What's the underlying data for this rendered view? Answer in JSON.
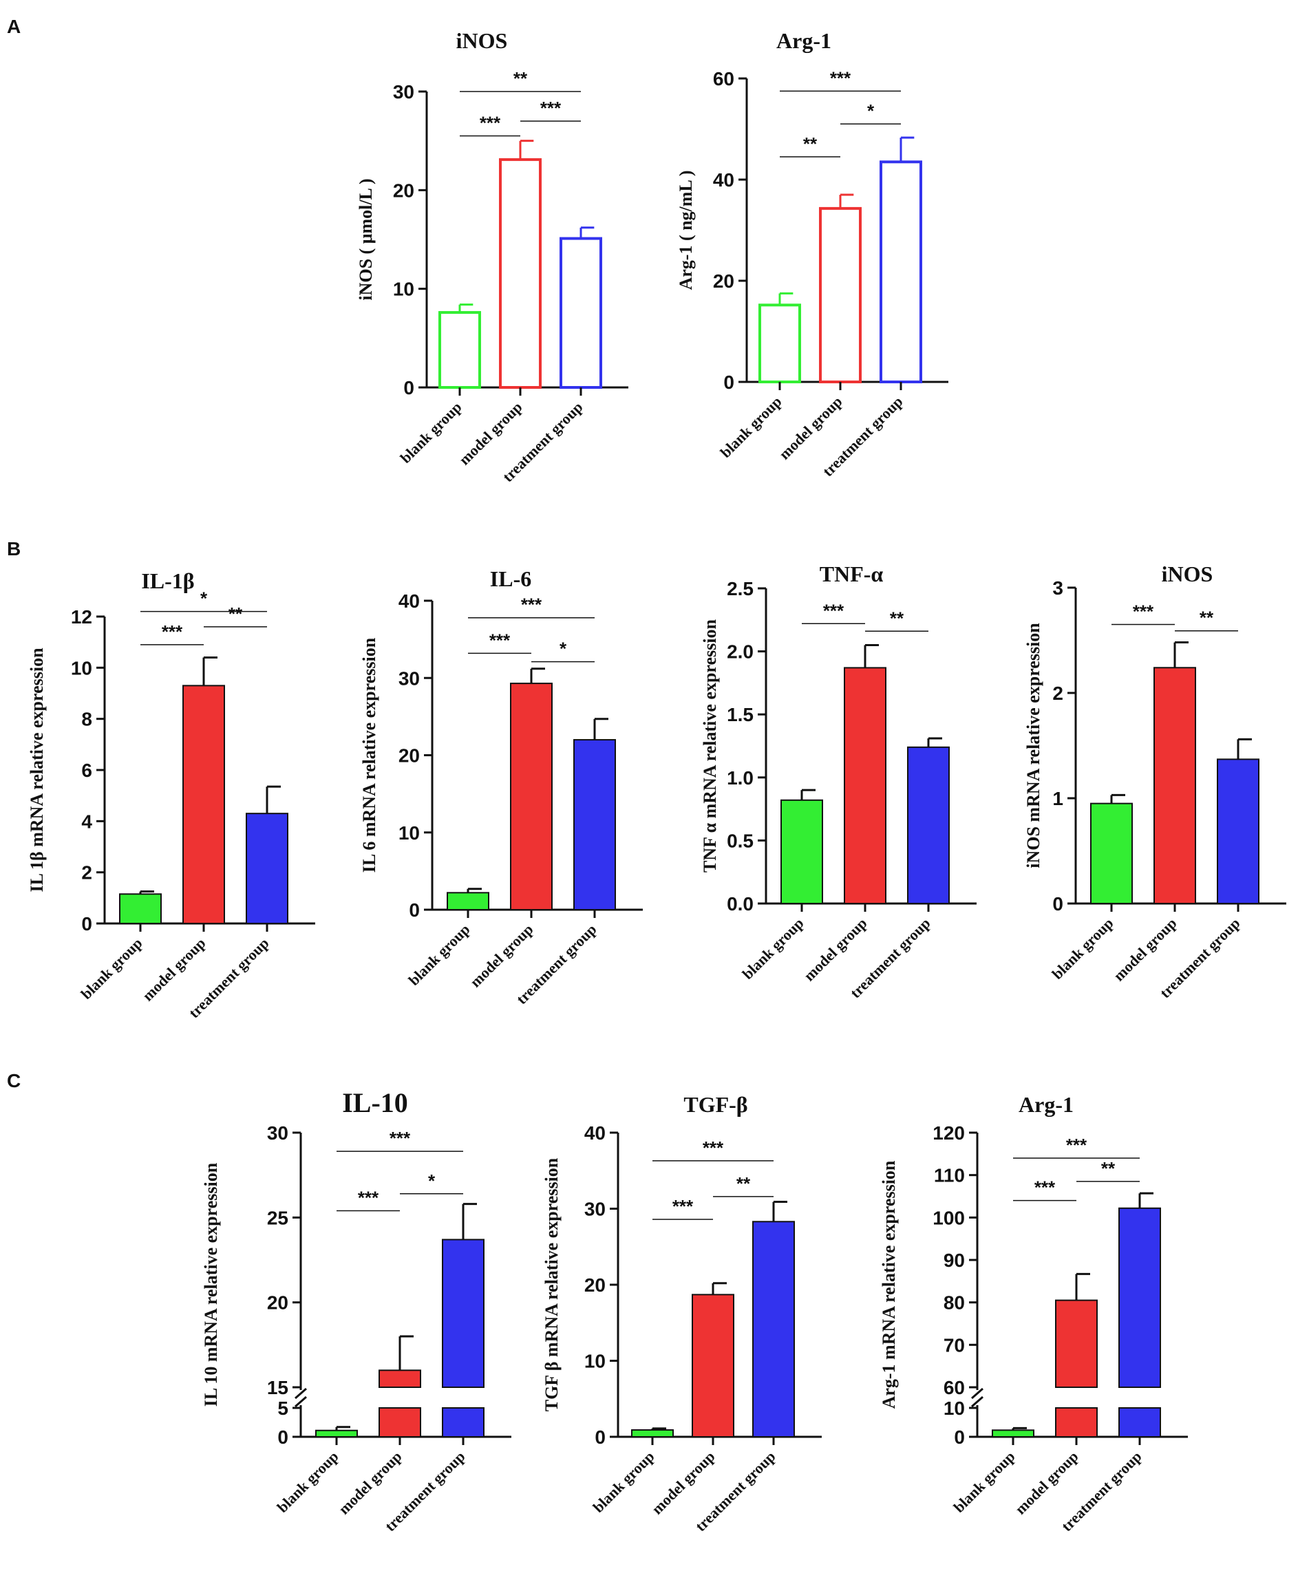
{
  "figure": {
    "panels": [
      {
        "label": "A"
      },
      {
        "label": "B"
      },
      {
        "label": "C"
      }
    ]
  },
  "chart_data": [
    {
      "id": "A1",
      "panel": "A",
      "type": "bar",
      "title": "iNOS",
      "ylabel": "iNOS ( μmol/L )",
      "categories": [
        "blank group",
        "model group",
        "treatment group"
      ],
      "values": [
        7.6,
        23.1,
        15.1
      ],
      "errors": [
        0.8,
        1.9,
        1.1
      ],
      "colors": [
        "#33ee33",
        "#ee3333",
        "#3333ee"
      ],
      "filled": false,
      "ylim": [
        0,
        30
      ],
      "yticks": [
        0,
        10,
        20,
        30
      ],
      "tick_labels": [
        "0",
        "10",
        "20",
        "30"
      ],
      "significance": [
        {
          "from": 0,
          "to": 1,
          "label": "***",
          "y": 25.5
        },
        {
          "from": 1,
          "to": 2,
          "label": "***",
          "y": 27.0
        },
        {
          "from": 0,
          "to": 2,
          "label": "**",
          "y": 30.0
        }
      ]
    },
    {
      "id": "A2",
      "panel": "A",
      "type": "bar",
      "title": "Arg-1",
      "ylabel": "Arg-1 ( ng/mL )",
      "categories": [
        "blank group",
        "model group",
        "treatment group"
      ],
      "values": [
        15.2,
        34.3,
        43.5
      ],
      "errors": [
        2.3,
        2.7,
        4.8
      ],
      "colors": [
        "#33ee33",
        "#ee3333",
        "#3333ee"
      ],
      "filled": false,
      "ylim": [
        0,
        60
      ],
      "yticks": [
        0,
        20,
        40,
        60
      ],
      "tick_labels": [
        "0",
        "20",
        "40",
        "60"
      ],
      "significance": [
        {
          "from": 0,
          "to": 1,
          "label": "**",
          "y": 44.5
        },
        {
          "from": 1,
          "to": 2,
          "label": "*",
          "y": 51.0
        },
        {
          "from": 0,
          "to": 2,
          "label": "***",
          "y": 57.5
        }
      ]
    },
    {
      "id": "B1",
      "panel": "B",
      "type": "bar",
      "title": "IL-1β",
      "ylabel": "IL 1β mRNA relative expression",
      "categories": [
        "blank group",
        "model group",
        "treatment group"
      ],
      "values": [
        1.15,
        9.3,
        4.3
      ],
      "errors": [
        0.1,
        1.1,
        1.05
      ],
      "colors": [
        "#33ee33",
        "#ee3333",
        "#3333ee"
      ],
      "filled": true,
      "ylim": [
        0,
        12
      ],
      "yticks": [
        0,
        2,
        4,
        6,
        8,
        10,
        12
      ],
      "tick_labels": [
        "0",
        "2",
        "4",
        "6",
        "8",
        "10",
        "12"
      ],
      "significance": [
        {
          "from": 0,
          "to": 1,
          "label": "***",
          "y": 10.9
        },
        {
          "from": 1,
          "to": 2,
          "label": "**",
          "y": 11.6
        },
        {
          "from": 0,
          "to": 2,
          "label": "*",
          "y": 12.2
        }
      ]
    },
    {
      "id": "B2",
      "panel": "B",
      "type": "bar",
      "title": "IL-6",
      "ylabel": "IL 6 mRNA relative expression",
      "categories": [
        "blank group",
        "model group",
        "treatment group"
      ],
      "values": [
        2.2,
        29.3,
        22.0
      ],
      "errors": [
        0.5,
        1.9,
        2.7
      ],
      "colors": [
        "#33ee33",
        "#ee3333",
        "#3333ee"
      ],
      "filled": true,
      "ylim": [
        0,
        40
      ],
      "yticks": [
        0,
        10,
        20,
        30,
        40
      ],
      "tick_labels": [
        "0",
        "10",
        "20",
        "30",
        "40"
      ],
      "significance": [
        {
          "from": 0,
          "to": 1,
          "label": "***",
          "y": 33.2
        },
        {
          "from": 1,
          "to": 2,
          "label": "*",
          "y": 32.1
        },
        {
          "from": 0,
          "to": 2,
          "label": "***",
          "y": 37.8
        }
      ]
    },
    {
      "id": "B3",
      "panel": "B",
      "type": "bar",
      "title": "TNF-α",
      "ylabel": "TNF α mRNA relative expression",
      "categories": [
        "blank group",
        "model group",
        "treatment group"
      ],
      "values": [
        0.82,
        1.87,
        1.24
      ],
      "errors": [
        0.08,
        0.18,
        0.07
      ],
      "colors": [
        "#33ee33",
        "#ee3333",
        "#3333ee"
      ],
      "filled": true,
      "ylim": [
        0,
        2.5
      ],
      "yticks": [
        0,
        0.5,
        1.0,
        1.5,
        2.0,
        2.5
      ],
      "tick_labels": [
        "0.0",
        "0.5",
        "1.0",
        "1.5",
        "2.0",
        "2.5"
      ],
      "significance": [
        {
          "from": 0,
          "to": 1,
          "label": "***",
          "y": 2.22
        },
        {
          "from": 1,
          "to": 2,
          "label": "**",
          "y": 2.16
        }
      ]
    },
    {
      "id": "B4",
      "panel": "B",
      "type": "bar",
      "title": "iNOS",
      "ylabel": "iNOS mRNA relative expression",
      "categories": [
        "blank group",
        "model group",
        "treatment group"
      ],
      "values": [
        0.95,
        2.24,
        1.37
      ],
      "errors": [
        0.08,
        0.24,
        0.19
      ],
      "colors": [
        "#33ee33",
        "#ee3333",
        "#3333ee"
      ],
      "filled": true,
      "ylim": [
        0,
        3
      ],
      "yticks": [
        0,
        1,
        2,
        3
      ],
      "tick_labels": [
        "0",
        "1",
        "2",
        "3"
      ],
      "significance": [
        {
          "from": 0,
          "to": 1,
          "label": "***",
          "y": 2.65
        },
        {
          "from": 1,
          "to": 2,
          "label": "**",
          "y": 2.59
        }
      ]
    },
    {
      "id": "C1",
      "panel": "C",
      "type": "bar",
      "title": "IL-10",
      "ylabel": "IL 10 mRNA relative expression",
      "categories": [
        "blank group",
        "model group",
        "treatment group"
      ],
      "values": [
        1.1,
        16.0,
        23.7
      ],
      "errors": [
        0.6,
        2.0,
        2.1
      ],
      "colors": [
        "#33ee33",
        "#ee3333",
        "#3333ee"
      ],
      "filled": true,
      "broken_axis": {
        "lower": [
          0,
          5
        ],
        "upper": [
          15,
          30
        ]
      },
      "yticks": [
        0,
        5,
        15,
        20,
        25,
        30
      ],
      "tick_labels": [
        "0",
        "5",
        "15",
        "20",
        "25",
        "30"
      ],
      "significance": [
        {
          "from": 0,
          "to": 1,
          "label": "***",
          "y": 25.4
        },
        {
          "from": 1,
          "to": 2,
          "label": "*",
          "y": 26.4
        },
        {
          "from": 0,
          "to": 2,
          "label": "***",
          "y": 28.9
        }
      ]
    },
    {
      "id": "C2",
      "panel": "C",
      "type": "bar",
      "title": "TGF-β",
      "ylabel": "TGF β mRNA relative expression",
      "categories": [
        "blank group",
        "model group",
        "treatment group"
      ],
      "values": [
        0.9,
        18.7,
        28.3
      ],
      "errors": [
        0.2,
        1.5,
        2.6
      ],
      "colors": [
        "#33ee33",
        "#ee3333",
        "#3333ee"
      ],
      "filled": true,
      "ylim": [
        0,
        40
      ],
      "yticks": [
        0,
        10,
        20,
        30,
        40
      ],
      "tick_labels": [
        "0",
        "10",
        "20",
        "30",
        "40"
      ],
      "significance": [
        {
          "from": 0,
          "to": 1,
          "label": "***",
          "y": 28.6
        },
        {
          "from": 1,
          "to": 2,
          "label": "**",
          "y": 31.6
        },
        {
          "from": 0,
          "to": 2,
          "label": "***",
          "y": 36.3
        }
      ]
    },
    {
      "id": "C3",
      "panel": "C",
      "type": "bar",
      "title": "Arg-1",
      "ylabel": "Arg-1  mRNA relative expression",
      "categories": [
        "blank group",
        "model group",
        "treatment group"
      ],
      "values": [
        2.3,
        80.5,
        102.2
      ],
      "errors": [
        0.7,
        6.2,
        3.5
      ],
      "colors": [
        "#33ee33",
        "#ee3333",
        "#3333ee"
      ],
      "filled": true,
      "broken_axis": {
        "lower": [
          0,
          10
        ],
        "upper": [
          60,
          120
        ]
      },
      "yticks": [
        0,
        10,
        60,
        70,
        80,
        90,
        100,
        110,
        120
      ],
      "tick_labels": [
        "0",
        "10",
        "60",
        "70",
        "80",
        "90",
        "100",
        "110",
        "120"
      ],
      "significance": [
        {
          "from": 0,
          "to": 1,
          "label": "***",
          "y": 104.0
        },
        {
          "from": 1,
          "to": 2,
          "label": "**",
          "y": 108.5
        },
        {
          "from": 0,
          "to": 2,
          "label": "***",
          "y": 114.0
        }
      ]
    }
  ]
}
